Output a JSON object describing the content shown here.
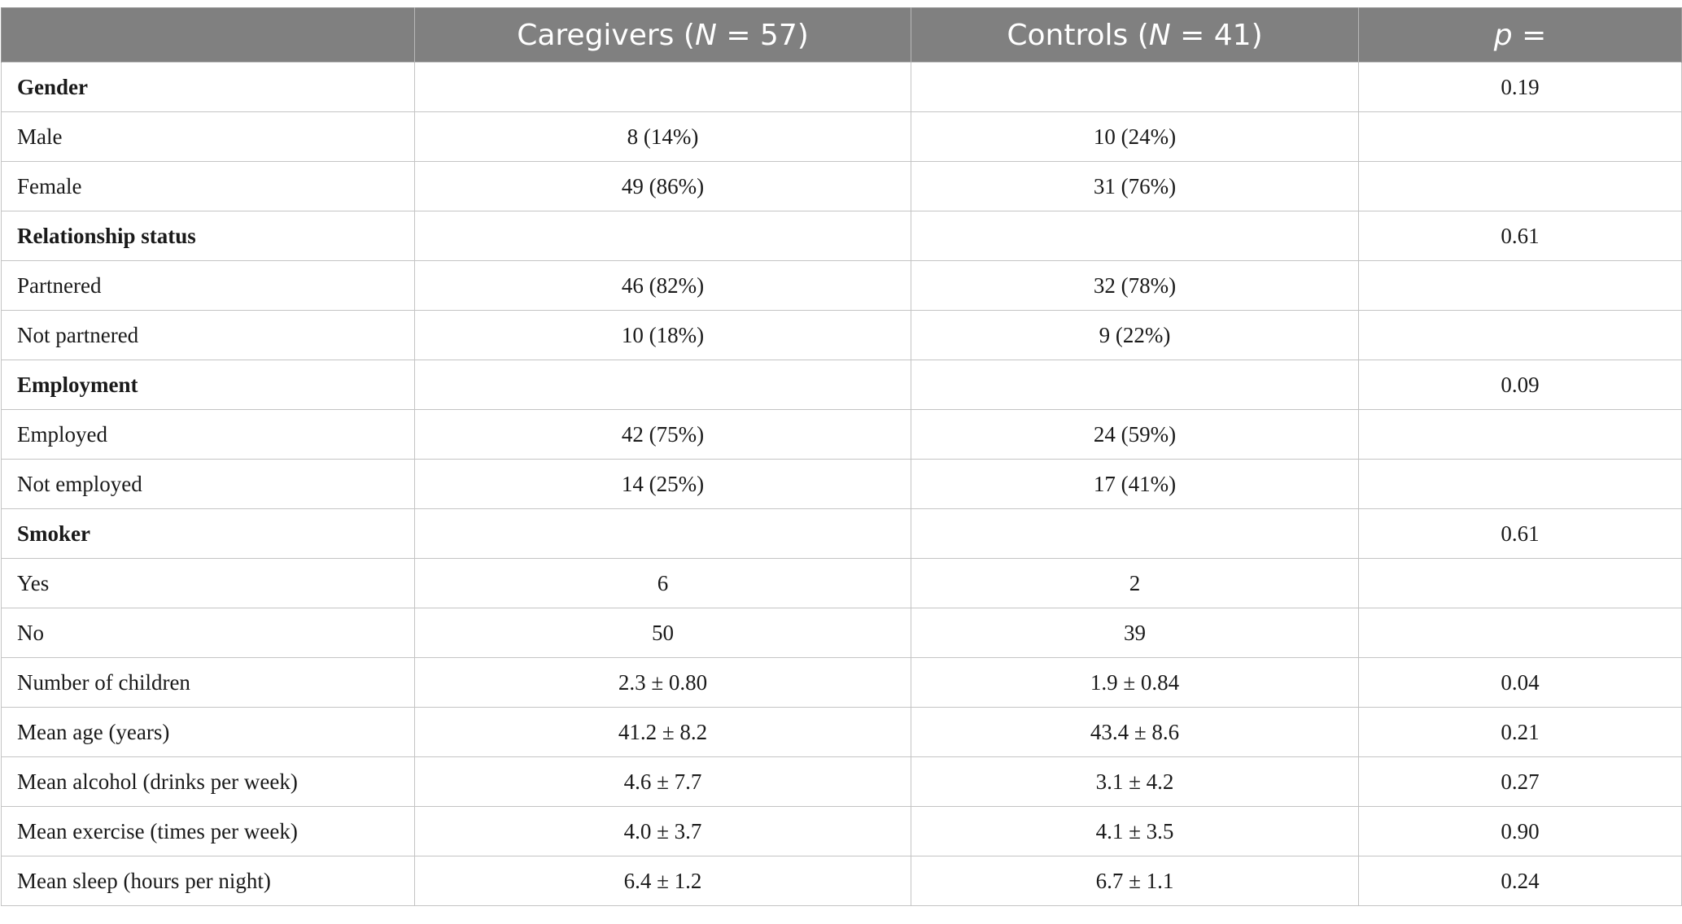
{
  "table": {
    "headers": {
      "col1": "",
      "caregivers_prefix": "Caregivers (",
      "caregivers_n_symbol": "N",
      "caregivers_suffix": " = 57)",
      "controls_prefix": "Controls (",
      "controls_n_symbol": "N",
      "controls_suffix": " = 41)",
      "p_symbol": "p",
      "p_suffix": " ="
    },
    "rows": [
      {
        "label": "Gender",
        "caregivers": "",
        "controls": "",
        "p": "0.19",
        "section": true
      },
      {
        "label": "Male",
        "caregivers": "8 (14%)",
        "controls": "10 (24%)",
        "p": "",
        "section": false
      },
      {
        "label": "Female",
        "caregivers": "49 (86%)",
        "controls": "31 (76%)",
        "p": "",
        "section": false
      },
      {
        "label": "Relationship status",
        "caregivers": "",
        "controls": "",
        "p": "0.61",
        "section": true
      },
      {
        "label": "Partnered",
        "caregivers": "46 (82%)",
        "controls": "32 (78%)",
        "p": "",
        "section": false
      },
      {
        "label": "Not partnered",
        "caregivers": "10 (18%)",
        "controls": "9 (22%)",
        "p": "",
        "section": false
      },
      {
        "label": "Employment",
        "caregivers": "",
        "controls": "",
        "p": "0.09",
        "section": true
      },
      {
        "label": "Employed",
        "caregivers": "42 (75%)",
        "controls": "24 (59%)",
        "p": "",
        "section": false
      },
      {
        "label": "Not employed",
        "caregivers": "14 (25%)",
        "controls": "17 (41%)",
        "p": "",
        "section": false
      },
      {
        "label": "Smoker",
        "caregivers": "",
        "controls": "",
        "p": "0.61",
        "section": true
      },
      {
        "label": "Yes",
        "caregivers": "6",
        "controls": "2",
        "p": "",
        "section": false
      },
      {
        "label": "No",
        "caregivers": "50",
        "controls": "39",
        "p": "",
        "section": false
      },
      {
        "label": "Number of children",
        "caregivers": "2.3 ± 0.80",
        "controls": "1.9 ± 0.84",
        "p": "0.04",
        "section": false
      },
      {
        "label": "Mean age (years)",
        "caregivers": "41.2 ± 8.2",
        "controls": "43.4 ± 8.6",
        "p": "0.21",
        "section": false
      },
      {
        "label": "Mean alcohol (drinks per week)",
        "caregivers": "4.6 ± 7.7",
        "controls": "3.1 ± 4.2",
        "p": "0.27",
        "section": false
      },
      {
        "label": "Mean exercise (times per week)",
        "caregivers": "4.0 ± 3.7",
        "controls": "4.1 ± 3.5",
        "p": "0.90",
        "section": false
      },
      {
        "label": "Mean sleep (hours per night)",
        "caregivers": "6.4 ± 1.2",
        "controls": "6.7 ± 1.1",
        "p": "0.24",
        "section": false
      }
    ]
  }
}
